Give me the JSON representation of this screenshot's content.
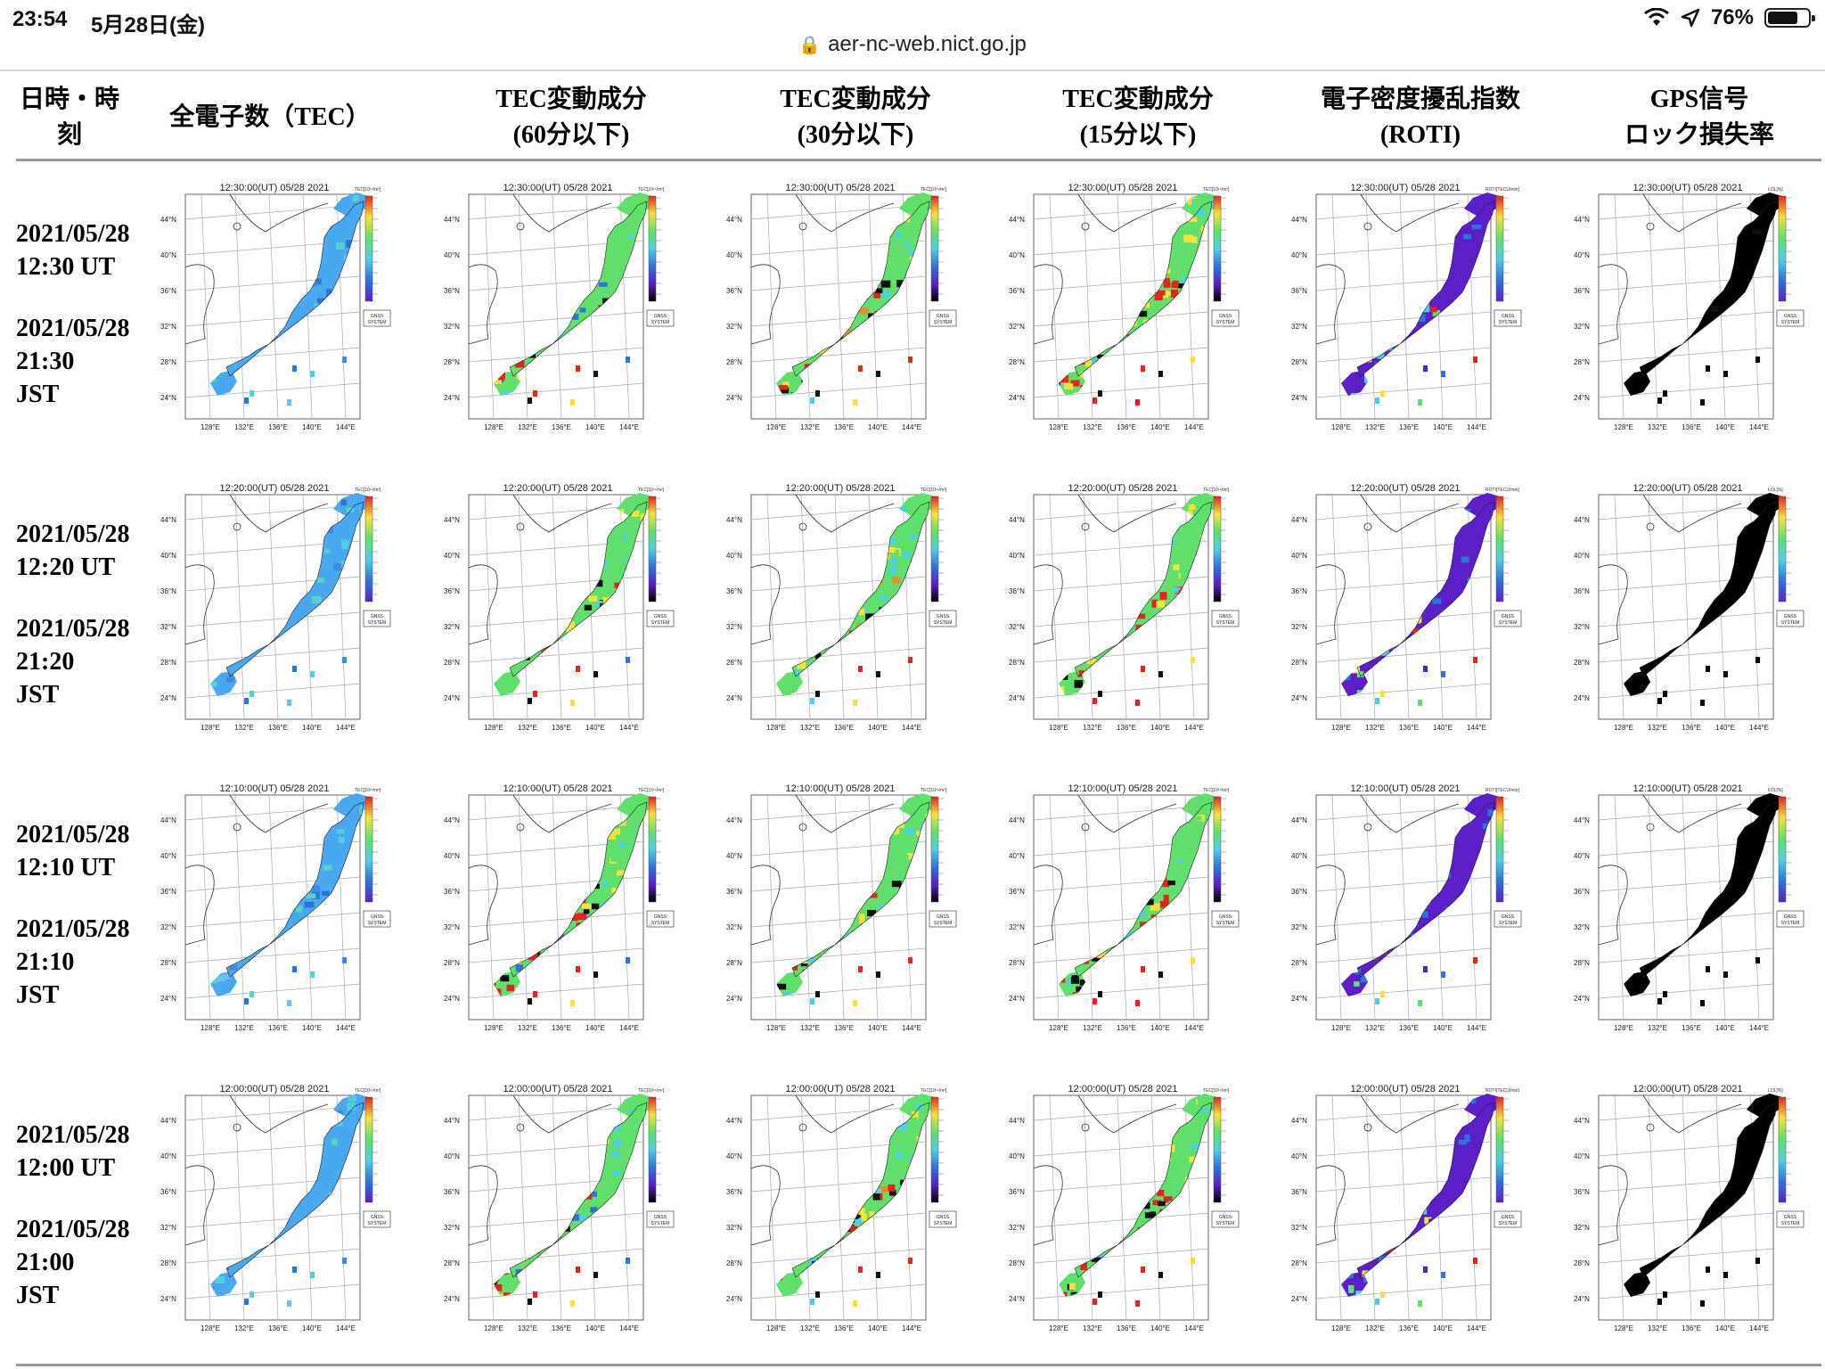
{
  "status_bar": {
    "time": "23:54",
    "date": "5月28日(金)",
    "battery": "76%",
    "battery_level": 0.76
  },
  "browser": {
    "url": "aer-nc-web.nict.go.jp"
  },
  "table": {
    "headers": [
      {
        "line1": "日時・時",
        "line2": "刻"
      },
      {
        "line1": "全電子数（TEC）",
        "line2": ""
      },
      {
        "line1": "TEC変動成分",
        "line2": "(60分以下)"
      },
      {
        "line1": "TEC変動成分",
        "line2": "(30分以下)"
      },
      {
        "line1": "TEC変動成分",
        "line2": "(15分以下)"
      },
      {
        "line1": "電子密度擾乱指数",
        "line2": "(ROTI)"
      },
      {
        "line1": "GPS信号",
        "line2": "ロック損失率"
      }
    ],
    "lat_ticks": [
      "44°N",
      "40°N",
      "36°N",
      "32°N",
      "28°N",
      "24°N"
    ],
    "lon_ticks": [
      "128°E",
      "132°E",
      "136°E",
      "140°E",
      "144°E"
    ],
    "logo_text": [
      "GNSS",
      "SYSTEM"
    ],
    "colorbar_units": [
      "TEC[10¹⁶/m²]",
      "TEC[10¹⁶/m²]",
      "TEC[10¹⁶/m²]",
      "TEC[10¹⁶/m²]",
      "ROTI[TECU/min]",
      "LOL[%]"
    ],
    "rows": [
      {
        "date_ut": "2021/05/28",
        "time_ut": "12:30 UT",
        "date_jst": "2021/05/28",
        "time_jst": "21:30",
        "tz_jst": "JST",
        "map_title": "12:30:00(UT) 05/28 2021"
      },
      {
        "date_ut": "2021/05/28",
        "time_ut": "12:20 UT",
        "date_jst": "2021/05/28",
        "time_jst": "21:20",
        "tz_jst": "JST",
        "map_title": "12:20:00(UT) 05/28 2021"
      },
      {
        "date_ut": "2021/05/28",
        "time_ut": "12:10 UT",
        "date_jst": "2021/05/28",
        "time_jst": "21:10",
        "tz_jst": "JST",
        "map_title": "12:10:00(UT) 05/28 2021"
      },
      {
        "date_ut": "2021/05/28",
        "time_ut": "12:00 UT",
        "date_jst": "2021/05/28",
        "time_jst": "21:00",
        "tz_jst": "JST",
        "map_title": "12:00:00(UT) 05/28 2021"
      }
    ]
  },
  "colors": {
    "tec_light": "#4aa8ee",
    "tec_dark": "#2e74d8",
    "tec_cyan": "#4fd0e0",
    "disturb_red": "#e8231c",
    "disturb_black": "#111111",
    "disturb_green": "#5fe06a",
    "disturb_yellow": "#f5e23a",
    "roti_purple": "#5a1fc8",
    "lol_black": "#000000"
  }
}
